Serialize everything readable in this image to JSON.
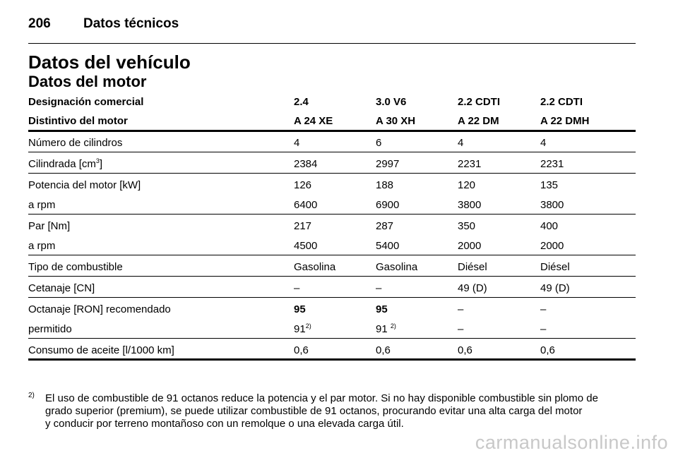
{
  "header": {
    "page": "206",
    "section": "Datos técnicos"
  },
  "title": "Datos del vehículo",
  "subtitle": "Datos del motor",
  "table": {
    "head": [
      [
        "Designación comercial",
        "2.4",
        "3.0 V6",
        "2.2 CDTI",
        "2.2 CDTI"
      ],
      [
        "Distintivo del motor",
        "A 24 XE",
        "A 30 XH",
        "A 22 DM",
        "A 22 DMH"
      ]
    ],
    "groups": [
      [
        [
          "Número de cilindros",
          "4",
          "6",
          "4",
          "4"
        ]
      ],
      [
        [
          {
            "text": "Cilindrada [cm",
            "sup": "3",
            "after": "]"
          },
          "2384",
          "2997",
          "2231",
          "2231"
        ]
      ],
      [
        [
          "Potencia del motor [kW]",
          "126",
          "188",
          "120",
          "135"
        ],
        [
          "a rpm",
          "6400",
          "6900",
          "3800",
          "3800"
        ]
      ],
      [
        [
          "Par [Nm]",
          "217",
          "287",
          "350",
          "400"
        ],
        [
          "a rpm",
          "4500",
          "5400",
          "2000",
          "2000"
        ]
      ],
      [
        [
          "Tipo de combustible",
          "Gasolina",
          "Gasolina",
          "Diésel",
          "Diésel"
        ]
      ],
      [
        [
          "Cetanaje [CN]",
          "–",
          "–",
          "49 (D)",
          "49 (D)"
        ]
      ],
      [
        [
          "Octanaje [RON] recomendado",
          {
            "text": "95",
            "bold": true
          },
          {
            "text": "95",
            "bold": true
          },
          "–",
          "–"
        ],
        [
          "permitido",
          {
            "text": "91",
            "sup": "2)"
          },
          {
            "text": "91 ",
            "sup": "2)"
          },
          "–",
          "–"
        ]
      ],
      [
        [
          "Consumo de aceite [l/1000 km]",
          "0,6",
          "0,6",
          "0,6",
          "0,6"
        ]
      ]
    ]
  },
  "footnote": {
    "mark": "2)",
    "lines": [
      "El uso de combustible de 91 octanos reduce la potencia y el par motor. Si no hay disponible combustible sin plomo de",
      "grado superior (premium), se puede utilizar combustible de 91 octanos, procurando evitar una alta carga del motor",
      "y conducir por terreno montañoso con un remolque o una elevada carga útil."
    ]
  },
  "watermark": "carmanualsonline.info"
}
